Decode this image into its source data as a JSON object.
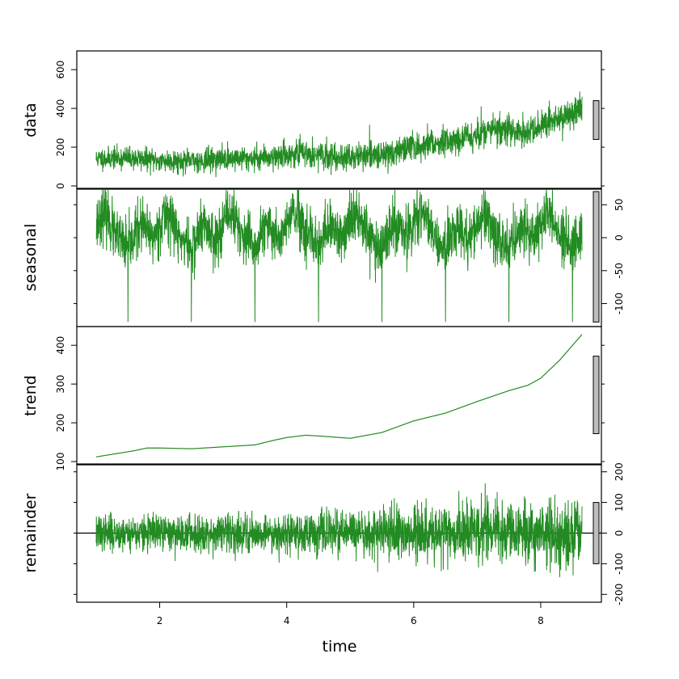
{
  "chart_data": {
    "type": "line",
    "xlabel": "time",
    "x_range": [
      1,
      8.65
    ],
    "x_ticks": [
      2,
      4,
      6,
      8
    ],
    "series_color": "#228b22",
    "panels": [
      {
        "name": "data",
        "y_range": [
          0,
          680
        ],
        "y_ticks": [
          0,
          200,
          400,
          600
        ],
        "y_tick_labels": [
          "0",
          "200",
          "400",
          "600"
        ],
        "axis_side": "left",
        "scale_bar": [
          240,
          440
        ],
        "knots": [
          [
            1,
            140
          ],
          [
            1.5,
            145
          ],
          [
            2,
            130
          ],
          [
            2.5,
            128
          ],
          [
            3,
            140
          ],
          [
            3.5,
            145
          ],
          [
            4,
            160
          ],
          [
            4.3,
            170
          ],
          [
            4.6,
            152
          ],
          [
            5,
            148
          ],
          [
            5.5,
            162
          ],
          [
            6,
            200
          ],
          [
            6.5,
            232
          ],
          [
            7,
            262
          ],
          [
            7.2,
            292
          ],
          [
            7.5,
            290
          ],
          [
            7.8,
            272
          ],
          [
            8,
            300
          ],
          [
            8.3,
            350
          ],
          [
            8.65,
            400
          ]
        ],
        "noise": 55,
        "noise_growth": 1.3,
        "seed": 11
      },
      {
        "name": "seasonal",
        "y_range": [
          -130,
          70
        ],
        "y_ticks": [
          -100,
          -50,
          0,
          50
        ],
        "y_tick_labels": [
          "-100",
          "-50",
          "0",
          "50"
        ],
        "axis_side": "right",
        "scale_bar": [
          -128,
          70
        ],
        "period": 1,
        "profile": [
          [
            0,
            20
          ],
          [
            0.1,
            38
          ],
          [
            0.2,
            28
          ],
          [
            0.3,
            0
          ],
          [
            0.4,
            -5
          ],
          [
            0.5,
            -20
          ],
          [
            0.6,
            5
          ],
          [
            0.7,
            18
          ],
          [
            0.8,
            8
          ],
          [
            0.9,
            0
          ],
          [
            1,
            20
          ]
        ],
        "spike_value": -128,
        "spike_phase": 0.5,
        "noise": 20,
        "seed": 23
      },
      {
        "name": "trend",
        "y_range": [
          100,
          440
        ],
        "y_ticks": [
          100,
          200,
          300,
          400
        ],
        "y_tick_labels": [
          "100",
          "200",
          "300",
          "400"
        ],
        "axis_side": "left",
        "scale_bar": [
          172,
          372
        ],
        "knots": [
          [
            1,
            112
          ],
          [
            1.3,
            120
          ],
          [
            1.6,
            128
          ],
          [
            1.8,
            135
          ],
          [
            2,
            135
          ],
          [
            2.5,
            133
          ],
          [
            3,
            138
          ],
          [
            3.5,
            143
          ],
          [
            3.8,
            155
          ],
          [
            4,
            162
          ],
          [
            4.3,
            168
          ],
          [
            4.6,
            165
          ],
          [
            5,
            160
          ],
          [
            5.5,
            175
          ],
          [
            6,
            205
          ],
          [
            6.5,
            225
          ],
          [
            7,
            255
          ],
          [
            7.5,
            283
          ],
          [
            7.8,
            297
          ],
          [
            8,
            315
          ],
          [
            8.3,
            362
          ],
          [
            8.65,
            428
          ]
        ]
      },
      {
        "name": "remainder",
        "y_range": [
          -215,
          215
        ],
        "y_ticks": [
          -200,
          -100,
          0,
          100,
          200
        ],
        "y_tick_labels": [
          "-200",
          "-100",
          "0",
          "100",
          "200"
        ],
        "axis_side": "right",
        "scale_bar": [
          -100,
          100
        ],
        "zero_line": true,
        "noise": 52,
        "noise_growth": 1.6,
        "seed": 37
      }
    ]
  }
}
